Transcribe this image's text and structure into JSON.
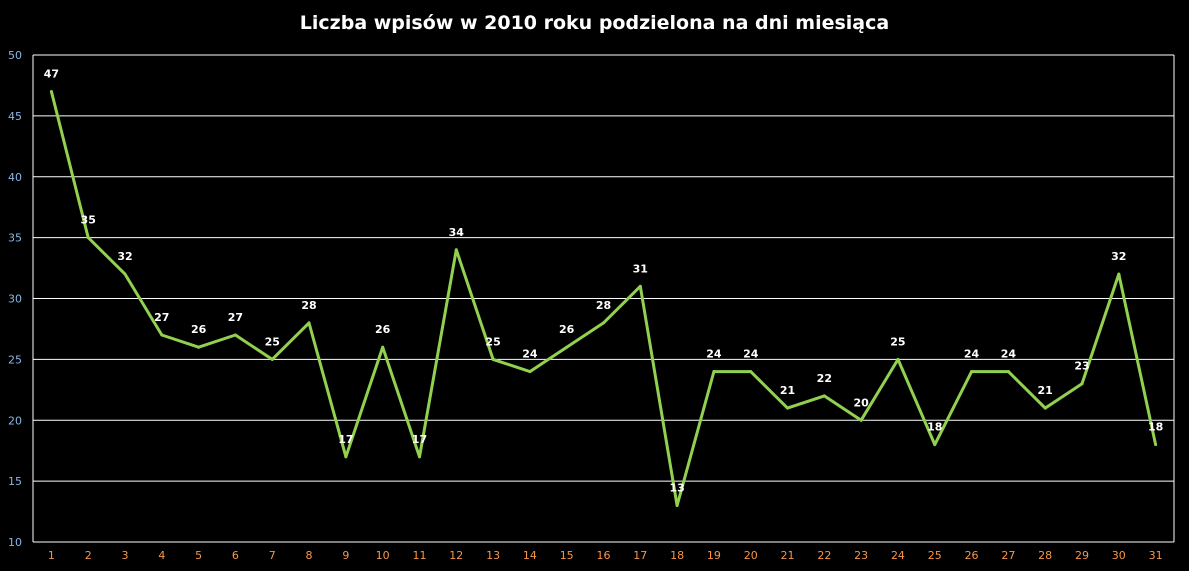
{
  "chart_data": {
    "type": "line",
    "title": "Liczba wpisów w 2010 roku podzielona na dni miesiąca",
    "xlabel": "",
    "ylabel": "",
    "categories": [
      "1",
      "2",
      "3",
      "4",
      "5",
      "6",
      "7",
      "8",
      "9",
      "10",
      "11",
      "12",
      "13",
      "14",
      "15",
      "16",
      "17",
      "18",
      "19",
      "20",
      "21",
      "22",
      "23",
      "24",
      "25",
      "26",
      "27",
      "28",
      "29",
      "30",
      "31"
    ],
    "series": [
      {
        "values": [
          47,
          35,
          32,
          27,
          26,
          27,
          25,
          28,
          17,
          26,
          17,
          34,
          25,
          24,
          26,
          28,
          31,
          13,
          24,
          24,
          21,
          22,
          20,
          25,
          18,
          24,
          24,
          21,
          23,
          32,
          18
        ]
      }
    ],
    "ylim": [
      10,
      50
    ],
    "yticks": [
      10,
      15,
      20,
      25,
      30,
      35,
      40,
      45,
      50
    ],
    "grid": true,
    "legend": "none",
    "data_labels": true
  },
  "colors": {
    "background": "#000000",
    "line": "#92d050",
    "grid": "#ffffff",
    "y_tick_text": "#8db4e2",
    "x_tick_text": "#f79646",
    "label_text": "#ffffff"
  }
}
